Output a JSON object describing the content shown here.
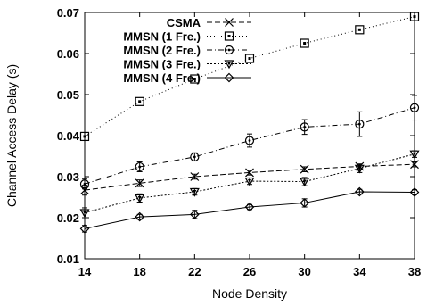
{
  "chart_data": {
    "type": "line",
    "title": "",
    "xlabel": "Node Density",
    "ylabel": "Channel Access Delay (s)",
    "x": [
      14,
      18,
      22,
      26,
      30,
      34,
      38
    ],
    "xticks": [
      "14",
      "18",
      "22",
      "26",
      "30",
      "34",
      "38"
    ],
    "yticks": [
      "0.01",
      "0.02",
      "0.03",
      "0.04",
      "0.05",
      "0.06",
      "0.07"
    ],
    "xlim": [
      14,
      38
    ],
    "ylim": [
      0.01,
      0.07
    ],
    "grid": false,
    "legend_position": "top-center",
    "series": [
      {
        "name": "CSMA",
        "marker": "cross",
        "dash": "6,3",
        "values": [
          0.0267,
          0.0284,
          0.03,
          0.031,
          0.0318,
          0.0325,
          0.033
        ],
        "errors": [
          0.0012,
          0.0008,
          0.0006,
          0.0006,
          0.0006,
          0.0006,
          0.0006
        ]
      },
      {
        "name": "MMSN (1 Fre.)",
        "marker": "square",
        "dash": "1,3",
        "values": [
          0.0398,
          0.0483,
          0.0538,
          0.0588,
          0.0625,
          0.0658,
          0.069
        ],
        "errors": [
          0,
          0,
          0,
          0,
          0,
          0,
          0
        ]
      },
      {
        "name": "MMSN (2 Fre.)",
        "marker": "circle",
        "dash": "6,3,1,3",
        "values": [
          0.0282,
          0.0324,
          0.0348,
          0.0388,
          0.0421,
          0.0428,
          0.0468
        ],
        "errors": [
          0.0012,
          0.0012,
          0.001,
          0.0016,
          0.0018,
          0.003,
          0.003
        ]
      },
      {
        "name": "MMSN (3 Fre.)",
        "marker": "triangle-down",
        "dash": "2,2",
        "values": [
          0.0212,
          0.0248,
          0.0263,
          0.0289,
          0.0288,
          0.032,
          0.0355
        ],
        "errors": [
          0.0012,
          0.001,
          0.0008,
          0.0008,
          0.001,
          0.001,
          0.0008
        ]
      },
      {
        "name": "MMSN (4 Fre.)",
        "marker": "diamond",
        "dash": "",
        "values": [
          0.0173,
          0.0202,
          0.0208,
          0.0226,
          0.0236,
          0.0263,
          0.0262
        ],
        "errors": [
          0.0008,
          0.0006,
          0.001,
          0.0006,
          0.001,
          0.0006,
          0.0006
        ]
      }
    ]
  }
}
